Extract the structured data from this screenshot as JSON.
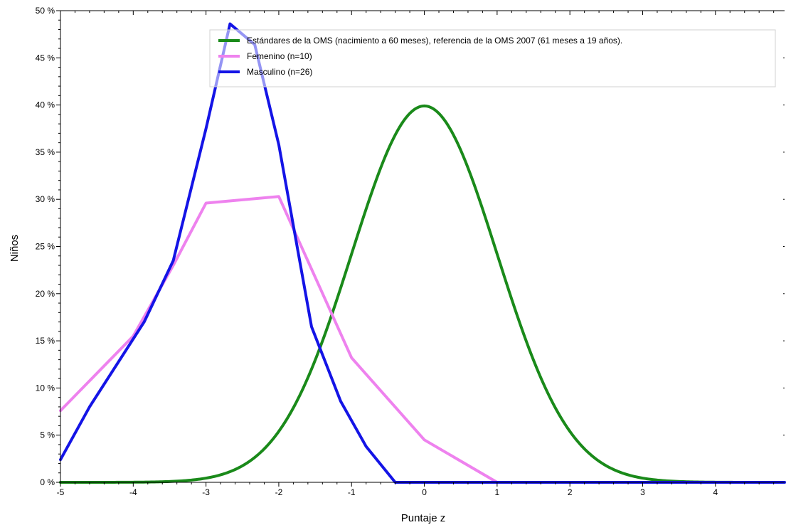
{
  "chart_data": {
    "type": "line",
    "title": "",
    "xlabel": "Puntaje z",
    "ylabel": "Niños",
    "xlim": [
      -5,
      4.95
    ],
    "ylim": [
      0,
      50
    ],
    "x_ticks": [
      -5,
      -4,
      -3,
      -2,
      -1,
      0,
      1,
      2,
      3,
      4
    ],
    "x_tick_labels": [
      "-5",
      "-4",
      "-3",
      "-2",
      "-1",
      "0",
      "1",
      "2",
      "3",
      "4"
    ],
    "y_ticks": [
      0,
      5,
      10,
      15,
      20,
      25,
      30,
      35,
      40,
      45,
      50
    ],
    "y_tick_labels": [
      "0 %",
      "5 %",
      "10 %",
      "15 %",
      "20 %",
      "25 %",
      "30 %",
      "35 %",
      "40 %",
      "45 %",
      "50 %"
    ],
    "grid": false,
    "legend_position": "top-right",
    "series": [
      {
        "name": "Estándares de la OMS (nacimiento a 60 meses), referencia de la OMS 2007 (61 meses a 19 años).",
        "color": "#1a8a1a",
        "kind": "normal_curve",
        "mean": 0,
        "sd": 1,
        "peak_percent": 39.9
      },
      {
        "name": "Femenino (n=10)",
        "color": "#ee82ee",
        "x": [
          -5,
          -4,
          -3.45,
          -3.0,
          -2.0,
          -1.0,
          0.0,
          1.0
        ],
        "y": [
          7.6,
          15.5,
          23.0,
          29.6,
          30.3,
          13.2,
          4.5,
          0.0
        ]
      },
      {
        "name": "Masculino (n=26)",
        "color": "#1414e6",
        "x": [
          -5,
          -4.6,
          -3.85,
          -3.45,
          -3.0,
          -2.67,
          -2.33,
          -2.0,
          -1.55,
          -1.15,
          -0.8,
          -0.4,
          4.95
        ],
        "y": [
          2.4,
          8.0,
          17.0,
          23.5,
          37.5,
          48.6,
          46.4,
          35.8,
          16.5,
          8.6,
          3.8,
          0.0,
          0.0
        ]
      }
    ]
  }
}
